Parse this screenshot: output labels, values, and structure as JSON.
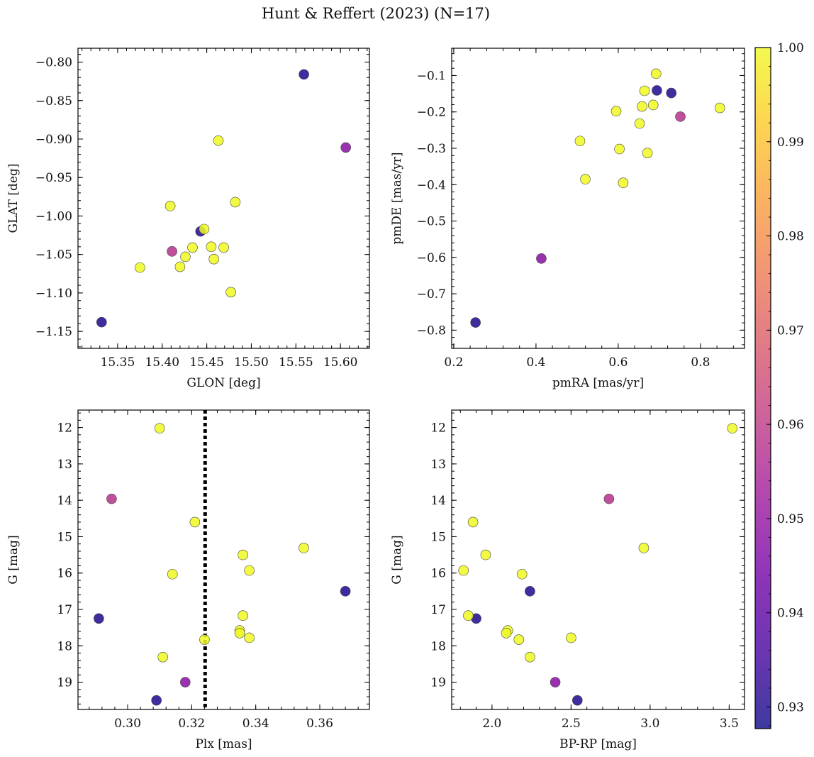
{
  "figure": {
    "title": "Hunt & Reffert (2023) (N=17)"
  },
  "colors": {
    "colormap": [
      "#0d0887",
      "#46039f",
      "#7201a8",
      "#9c179e",
      "#bd3786",
      "#d8576b",
      "#ed7953",
      "#fb9f3a",
      "#fdca26",
      "#f0f921"
    ],
    "point_alpha": 0.8,
    "reference_line": "#000000"
  },
  "chart_data": {
    "type": "scatter",
    "colorbar": {
      "min": 0.9277,
      "max": 1.0,
      "ticks": [
        0.93,
        0.94,
        0.95,
        0.96,
        0.97,
        0.98,
        0.99,
        1.0
      ],
      "tick_labels": [
        "0.93",
        "0.94",
        "0.95",
        "0.96",
        "0.97",
        "0.98",
        "0.99",
        "1.00"
      ],
      "orientation": "vertical",
      "placement": "right"
    },
    "stars": [
      {
        "glon": 15.559,
        "glat": -0.816,
        "pmra": 0.253,
        "pmde": -0.779,
        "plx": 0.309,
        "g": 19.5,
        "bprp": 2.54,
        "prob": 0.93
      },
      {
        "glon": 15.332,
        "glat": -1.138,
        "pmra": 0.694,
        "pmde": -0.141,
        "plx": 0.291,
        "g": 17.25,
        "bprp": 1.9,
        "prob": 0.93
      },
      {
        "glon": 15.443,
        "glat": -1.02,
        "pmra": 0.729,
        "pmde": -0.148,
        "plx": 0.368,
        "g": 16.5,
        "bprp": 2.24,
        "prob": 0.93
      },
      {
        "glon": 15.606,
        "glat": -0.911,
        "pmra": 0.413,
        "pmde": -0.603,
        "plx": 0.318,
        "g": 19.0,
        "bprp": 2.4,
        "prob": 0.948
      },
      {
        "glon": 15.411,
        "glat": -1.046,
        "pmra": 0.751,
        "pmde": -0.213,
        "plx": 0.295,
        "g": 13.96,
        "bprp": 2.74,
        "prob": 0.958
      },
      {
        "glon": 15.463,
        "glat": -0.902,
        "pmra": 0.692,
        "pmde": -0.095,
        "plx": 0.31,
        "g": 12.02,
        "bprp": 3.52,
        "prob": 1.0
      },
      {
        "glon": 15.409,
        "glat": -0.987,
        "pmra": 0.664,
        "pmde": -0.142,
        "plx": 0.321,
        "g": 14.6,
        "bprp": 1.88,
        "prob": 1.0
      },
      {
        "glon": 15.482,
        "glat": -0.982,
        "pmra": 0.847,
        "pmde": -0.189,
        "plx": 0.355,
        "g": 15.31,
        "bprp": 2.96,
        "prob": 1.0
      },
      {
        "glon": 15.447,
        "glat": -1.017,
        "pmra": 0.685,
        "pmde": -0.181,
        "plx": 0.336,
        "g": 15.5,
        "bprp": 1.96,
        "prob": 1.0
      },
      {
        "glon": 15.455,
        "glat": -1.04,
        "pmra": 0.658,
        "pmde": -0.185,
        "plx": 0.314,
        "g": 16.03,
        "bprp": 2.19,
        "prob": 1.0
      },
      {
        "glon": 15.434,
        "glat": -1.041,
        "pmra": 0.595,
        "pmde": -0.198,
        "plx": 0.338,
        "g": 15.93,
        "bprp": 1.82,
        "prob": 1.0
      },
      {
        "glon": 15.469,
        "glat": -1.041,
        "pmra": 0.652,
        "pmde": -0.232,
        "plx": 0.336,
        "g": 17.17,
        "bprp": 1.85,
        "prob": 1.0
      },
      {
        "glon": 15.426,
        "glat": -1.053,
        "pmra": 0.507,
        "pmde": -0.28,
        "plx": 0.335,
        "g": 17.58,
        "bprp": 2.1,
        "prob": 1.0
      },
      {
        "glon": 15.458,
        "glat": -1.056,
        "pmra": 0.603,
        "pmde": -0.302,
        "plx": 0.335,
        "g": 17.65,
        "bprp": 2.09,
        "prob": 1.0
      },
      {
        "glon": 15.375,
        "glat": -1.067,
        "pmra": 0.671,
        "pmde": -0.313,
        "plx": 0.324,
        "g": 17.83,
        "bprp": 2.17,
        "prob": 1.0
      },
      {
        "glon": 15.42,
        "glat": -1.066,
        "pmra": 0.52,
        "pmde": -0.385,
        "plx": 0.338,
        "g": 17.78,
        "bprp": 2.5,
        "prob": 1.0
      },
      {
        "glon": 15.477,
        "glat": -1.099,
        "pmra": 0.612,
        "pmde": -0.395,
        "plx": 0.311,
        "g": 18.31,
        "bprp": 2.24,
        "prob": 1.0
      }
    ],
    "panels": [
      {
        "id": "glon-glat",
        "x": "glon",
        "y": "glat",
        "xlabel": "GLON [deg]",
        "ylabel": "GLAT [deg]",
        "xlim": [
          15.3055,
          15.6325
        ],
        "ylim": [
          -1.172,
          -0.782
        ],
        "y_inverted": false,
        "xticks": [
          15.35,
          15.4,
          15.45,
          15.5,
          15.55,
          15.6
        ],
        "xtick_labels": [
          "15.35",
          "15.40",
          "15.45",
          "15.50",
          "15.55",
          "15.60"
        ],
        "yticks": [
          -0.8,
          -0.85,
          -0.9,
          -0.95,
          -1.0,
          -1.05,
          -1.1,
          -1.15
        ],
        "ytick_labels": [
          "−0.80",
          "−0.85",
          "−0.90",
          "−0.95",
          "−1.00",
          "−1.05",
          "−1.10",
          "−1.15"
        ]
      },
      {
        "id": "pmra-pmde",
        "x": "pmra",
        "y": "pmde",
        "xlabel": "pmRA [mas/yr]",
        "ylabel": "pmDE [mas/yr]",
        "xlim": [
          0.195,
          0.907
        ],
        "ylim": [
          -0.85,
          -0.025
        ],
        "y_inverted": false,
        "xticks": [
          0.2,
          0.4,
          0.6,
          0.8
        ],
        "xtick_labels": [
          "0.2",
          "0.4",
          "0.6",
          "0.8"
        ],
        "yticks": [
          -0.1,
          -0.2,
          -0.3,
          -0.4,
          -0.5,
          -0.6,
          -0.7,
          -0.8
        ],
        "ytick_labels": [
          "−0.1",
          "−0.2",
          "−0.3",
          "−0.4",
          "−0.5",
          "−0.6",
          "−0.7",
          "−0.8"
        ]
      },
      {
        "id": "plx-g",
        "x": "plx",
        "y": "g",
        "xlabel": "Plx [mas]",
        "ylabel": "G [mag]",
        "xlim": [
          0.2845,
          0.3755
        ],
        "ylim": [
          19.75,
          11.52
        ],
        "y_inverted": true,
        "vline": 0.3242,
        "xticks": [
          0.3,
          0.32,
          0.34,
          0.36
        ],
        "xtick_labels": [
          "0.30",
          "0.32",
          "0.34",
          "0.36"
        ],
        "yticks": [
          12,
          13,
          14,
          15,
          16,
          17,
          18,
          19
        ],
        "ytick_labels": [
          "12",
          "13",
          "14",
          "15",
          "16",
          "17",
          "18",
          "19"
        ]
      },
      {
        "id": "bprp-g",
        "x": "bprp",
        "y": "g",
        "xlabel": "BP-RP [mag]",
        "ylabel": "G [mag]",
        "xlim": [
          1.745,
          3.597
        ],
        "ylim": [
          19.75,
          11.52
        ],
        "y_inverted": true,
        "xticks": [
          2.0,
          2.5,
          3.0,
          3.5
        ],
        "xtick_labels": [
          "2.0",
          "2.5",
          "3.0",
          "3.5"
        ],
        "yticks": [
          12,
          13,
          14,
          15,
          16,
          17,
          18,
          19
        ],
        "ytick_labels": [
          "12",
          "13",
          "14",
          "15",
          "16",
          "17",
          "18",
          "19"
        ]
      }
    ]
  }
}
